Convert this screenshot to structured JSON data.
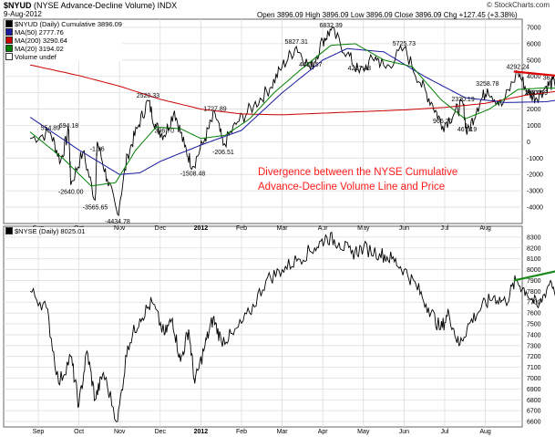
{
  "header": {
    "symbol": "$NYUD",
    "name": "(NYSE Advance-Decline Volume)",
    "exchange": "INDX",
    "date": "9-Aug-2012",
    "open_label": "Open",
    "open": "3896.09",
    "high_label": "High",
    "high": "3896.09",
    "low_label": "Low",
    "low": "3896.09",
    "close_label": "Close",
    "close": "3896.09",
    "change_label": "Chg",
    "change": "+127.45 (+3.38%)",
    "attribution": "© StockCharts.com"
  },
  "top_legend": [
    {
      "text": "$NYUD (Daily) Cumulative 3896.09",
      "color": "#000000"
    },
    {
      "text": "MA(50) 2777.76",
      "color": "#1a1aa0"
    },
    {
      "text": "MA(200) 3290.64",
      "color": "#cc0000"
    },
    {
      "text": "MA(20) 3194.02",
      "color": "#008000"
    },
    {
      "text": "Volume undef",
      "color": "#ffffff"
    }
  ],
  "bottom_legend": {
    "text": "$NYSE (Daily) 8025.01"
  },
  "callout": {
    "line1": "Divergence between the NYSE Cumulative",
    "line2": "Advance-Decline Volume Line and Price",
    "color": "#ff1a1a"
  },
  "x_axis_labels": [
    "Sep",
    "Oct",
    "Nov",
    "Dec",
    "2012",
    "Feb",
    "Mar",
    "Apr",
    "May",
    "Jun",
    "Jul",
    "Aug"
  ],
  "chart_data": [
    {
      "type": "line",
      "ylim": [
        -5000,
        7500
      ],
      "yticks": [
        -4000,
        -3000,
        -2000,
        -1000,
        0,
        1000,
        2000,
        3000,
        4000,
        5000,
        6000,
        7000
      ],
      "annotations": [
        {
          "x": 0.3,
          "y": 554.89,
          "text": "554.89"
        },
        {
          "x": 0.75,
          "y": 694.18,
          "text": "694.18"
        },
        {
          "x": 1.45,
          "y": -1.16,
          "text": "-1.16"
        },
        {
          "x": 0.8,
          "y": -2640.0,
          "text": "-2640.00"
        },
        {
          "x": 1.4,
          "y": -3565.65,
          "text": "-3565.65"
        },
        {
          "x": 1.95,
          "y": -4434.78,
          "text": "-4434.78"
        },
        {
          "x": 2.7,
          "y": 2520.33,
          "text": "2520.33"
        },
        {
          "x": 3.1,
          "y": 396.7,
          "text": "396.70"
        },
        {
          "x": 3.8,
          "y": -1508.48,
          "text": "-1508.48"
        },
        {
          "x": 4.35,
          "y": 1727.89,
          "text": "1727.89"
        },
        {
          "x": 4.55,
          "y": -206.51,
          "text": "-206.51"
        },
        {
          "x": 6.35,
          "y": 5827.31,
          "text": "5827.31"
        },
        {
          "x": 7.2,
          "y": 6832.39,
          "text": "6832.39"
        },
        {
          "x": 6.7,
          "y": 4435.57,
          "text": "4435.57"
        },
        {
          "x": 7.9,
          "y": 4217.48,
          "text": "4217.48"
        },
        {
          "x": 9.0,
          "y": 5725.73,
          "text": "5725.73"
        },
        {
          "x": 9.95,
          "y": 965.2,
          "text": "965.20"
        },
        {
          "x": 10.45,
          "y": 2320.19,
          "text": "2320.19"
        },
        {
          "x": 10.55,
          "y": 467.19,
          "text": "467.19"
        },
        {
          "x": 11.05,
          "y": 3258.78,
          "text": "3258.78"
        },
        {
          "x": 11.8,
          "y": 4292.24,
          "text": "4292.24"
        },
        {
          "x": 12.25,
          "y": 2687.59,
          "text": "2687.59"
        },
        {
          "x": 12.7,
          "y": 3631.3,
          "text": "3631.30"
        }
      ],
      "trendline": {
        "from": [
          11.7,
          4300
        ],
        "to": [
          13.4,
          3880
        ],
        "color": "#e00000"
      }
    },
    {
      "type": "line",
      "ylim": [
        6550,
        8400
      ],
      "yticks": [
        6600,
        6700,
        6800,
        6900,
        7000,
        7100,
        7200,
        7300,
        7400,
        7500,
        7600,
        7700,
        7800,
        7900,
        8000,
        8100,
        8200,
        8300
      ],
      "trendline": {
        "from": [
          11.7,
          7900
        ],
        "to": [
          13.4,
          8040
        ],
        "color": "#1a8a1a"
      }
    }
  ]
}
